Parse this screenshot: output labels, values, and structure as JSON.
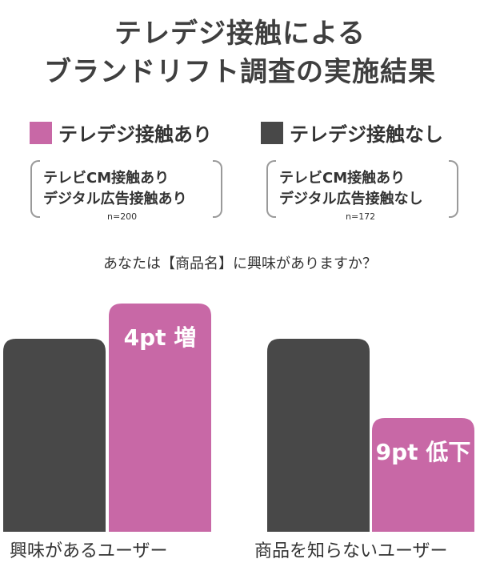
{
  "title_lines": [
    "テレデジ接触による",
    "ブランドリフト調査の実施結果"
  ],
  "question": "あなたは【商品名】に興味がありますか？",
  "colors": {
    "dark": "#484848",
    "pink": "#c868a6"
  },
  "groups": [
    {
      "legend": "テレデジ接触あり",
      "color": "#c868a6",
      "desc_lines": [
        "テレビCM接触あり",
        "デジタル広告接触あり"
      ],
      "n": "n=200"
    },
    {
      "legend": "テレデジ接触なし",
      "color": "#484848",
      "desc_lines": [
        "テレビCM接触あり",
        "デジタル広告接触なし"
      ],
      "n": "n=172"
    }
  ],
  "chart_data": {
    "type": "bar",
    "categories": [
      "興味があるユーザー",
      "商品を知らないユーザー"
    ],
    "series": [
      {
        "name": "テレデジ接触なし",
        "color": "#484848",
        "values": [
          0,
          0
        ]
      },
      {
        "name": "テレデジ接触あり",
        "color": "#c868a6",
        "values": [
          4,
          -9
        ]
      }
    ],
    "annotations": [
      "4pt 増",
      "9pt 低下"
    ],
    "yaxis_visible": false,
    "grid": false
  }
}
